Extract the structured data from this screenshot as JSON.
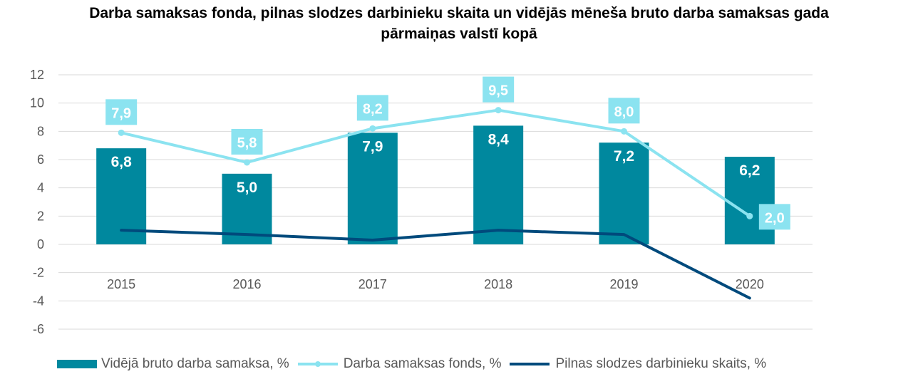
{
  "chart_data": {
    "type": "bar+line",
    "title_line1": "Darba samaksas fonda, pilnas slodzes darbinieku skaita un vidējās mēneša bruto darba samaksas gada",
    "title_line2": "pārmaiņas valstī kopā",
    "categories": [
      "2015",
      "2016",
      "2017",
      "2018",
      "2019",
      "2020"
    ],
    "ylim": [
      -6,
      12
    ],
    "yticks": [
      12,
      10,
      8,
      6,
      4,
      2,
      0,
      -2,
      -4,
      -6
    ],
    "grid": true,
    "legend_position": "bottom",
    "series": [
      {
        "name": "Vidējā bruto darba samaksa, %",
        "kind": "bar",
        "values": [
          6.8,
          5.0,
          7.9,
          8.4,
          7.2,
          6.2
        ],
        "labels": [
          "6,8",
          "5,0",
          "7,9",
          "8,4",
          "7,2",
          "6,2"
        ],
        "color": "#00889E"
      },
      {
        "name": "Darba samaksas fonds, %",
        "kind": "line",
        "values": [
          7.9,
          5.8,
          8.2,
          9.5,
          8.0,
          2.0
        ],
        "labels": [
          "7,9",
          "5,8",
          "8,2",
          "9,5",
          "8,0",
          "2,0"
        ],
        "color": "#8BE3F0"
      },
      {
        "name": "Pilnas slodzes darbinieku skaits, %",
        "kind": "line",
        "values": [
          1.0,
          0.7,
          0.3,
          1.0,
          0.7,
          -3.8
        ],
        "color": "#004A7C"
      }
    ],
    "colors": {
      "axis_text": "#595959",
      "grid": "#D9D9D9",
      "label_text": "#FFFFFF"
    }
  }
}
